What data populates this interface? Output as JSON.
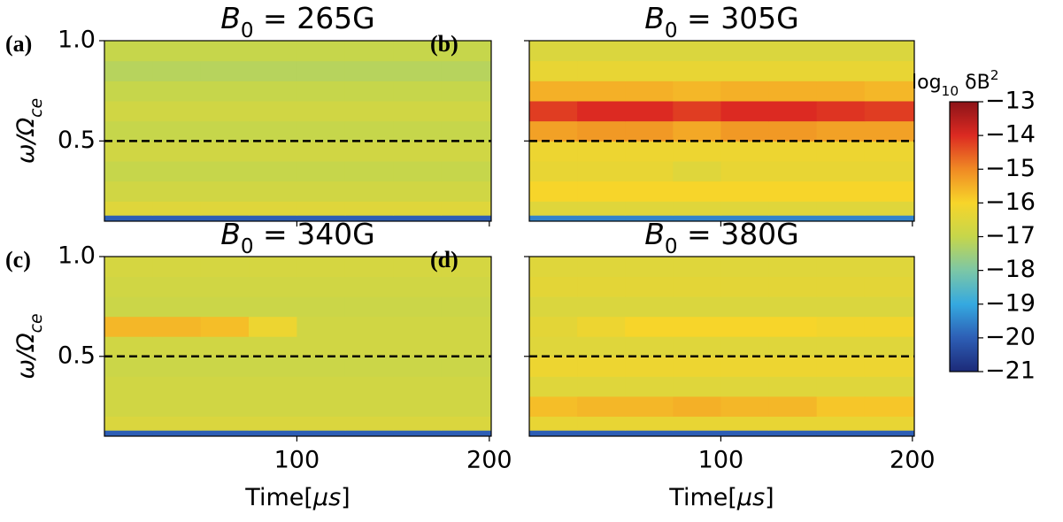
{
  "chart_data": [
    {
      "type": "heatmap",
      "panel_label": "(a)",
      "title_parts": [
        "B",
        "0",
        " = 265G"
      ],
      "ylabel_parts": [
        "ω/Ω",
        "ce"
      ],
      "x_edges": [
        0,
        25,
        50,
        75,
        100,
        125,
        150,
        175,
        200
      ],
      "y_edges": [
        0.1,
        0.13,
        0.2,
        0.3,
        0.4,
        0.5,
        0.6,
        0.7,
        0.8,
        0.9,
        1.0
      ],
      "z": [
        [
          -20,
          -20,
          -20,
          -20,
          -20,
          -20,
          -20,
          -20
        ],
        [
          -16.5,
          -16.5,
          -16.5,
          -16.5,
          -16.5,
          -16.5,
          -16.5,
          -16.5
        ],
        [
          -16.8,
          -16.8,
          -16.8,
          -16.8,
          -16.8,
          -16.8,
          -16.8,
          -16.8
        ],
        [
          -17,
          -17,
          -17,
          -17,
          -17,
          -17,
          -17,
          -17
        ],
        [
          -16.8,
          -16.8,
          -16.8,
          -16.8,
          -16.8,
          -16.8,
          -16.8,
          -16.8
        ],
        [
          -17,
          -17,
          -17,
          -17,
          -17,
          -17,
          -17,
          -17
        ],
        [
          -16.8,
          -16.8,
          -16.8,
          -16.8,
          -16.8,
          -16.8,
          -16.8,
          -16.8
        ],
        [
          -17,
          -17,
          -17,
          -17,
          -17,
          -17,
          -17,
          -17
        ],
        [
          -17.2,
          -17.2,
          -17.2,
          -17.2,
          -17.2,
          -17.2,
          -17.2,
          -17.2
        ],
        [
          -17,
          -17,
          -17,
          -17,
          -17,
          -17,
          -17,
          -17
        ]
      ],
      "xlim": [
        0,
        201
      ],
      "ylim": [
        0.1,
        1.0
      ],
      "xticks": [
        100,
        200
      ],
      "yticks": [
        0.5,
        {
          "value": 1.0,
          "label": "1.0"
        }
      ],
      "hline": 0.5,
      "show_xticklabels": false,
      "show_yticklabels": true
    },
    {
      "type": "heatmap",
      "panel_label": "(b)",
      "title_parts": [
        "B",
        "0",
        " = 305G"
      ],
      "x_edges": [
        0,
        25,
        50,
        75,
        100,
        125,
        150,
        175,
        200
      ],
      "y_edges": [
        0.1,
        0.13,
        0.2,
        0.3,
        0.4,
        0.5,
        0.6,
        0.7,
        0.8,
        0.9,
        1.0
      ],
      "z": [
        [
          -19.5,
          -19.5,
          -19.5,
          -19.5,
          -19.5,
          -19.5,
          -19.5,
          -19.5
        ],
        [
          -16.5,
          -16.5,
          -16.5,
          -16.5,
          -16.5,
          -16.5,
          -16.5,
          -16.5
        ],
        [
          -16,
          -16,
          -16,
          -16,
          -16,
          -16,
          -16,
          -16
        ],
        [
          -16.3,
          -16.3,
          -16.3,
          -16.5,
          -16.3,
          -16.3,
          -16.3,
          -16.3
        ],
        [
          -16.2,
          -16.2,
          -16.2,
          -16.2,
          -16.2,
          -16.2,
          -16.2,
          -16.2
        ],
        [
          -15.3,
          -15.2,
          -15.2,
          -15.4,
          -15.2,
          -15.2,
          -15.3,
          -15.3
        ],
        [
          -14.2,
          -14,
          -14,
          -14.2,
          -14,
          -14,
          -14.1,
          -14.2
        ],
        [
          -15.5,
          -15.5,
          -15.5,
          -15.6,
          -15.5,
          -15.5,
          -15.5,
          -15.6
        ],
        [
          -16.3,
          -16.3,
          -16.3,
          -16.3,
          -16.3,
          -16.3,
          -16.3,
          -16.3
        ],
        [
          -16.6,
          -16.6,
          -16.6,
          -16.6,
          -16.6,
          -16.6,
          -16.6,
          -16.6
        ]
      ],
      "xlim": [
        0,
        201
      ],
      "ylim": [
        0.1,
        1.0
      ],
      "xticks": [
        100,
        200
      ],
      "yticks": [
        0.5,
        {
          "value": 1.0,
          "label": "1.0"
        }
      ],
      "hline": 0.5,
      "show_xticklabels": false,
      "show_yticklabels": false
    },
    {
      "type": "heatmap",
      "panel_label": "(c)",
      "title_parts": [
        "B",
        "0",
        " = 340G"
      ],
      "ylabel_parts": [
        "ω/Ω",
        "ce"
      ],
      "xlabel_parts": [
        "Time[",
        "μs",
        "]"
      ],
      "x_edges": [
        0,
        25,
        50,
        75,
        100,
        125,
        150,
        175,
        200
      ],
      "y_edges": [
        0.1,
        0.13,
        0.2,
        0.3,
        0.4,
        0.5,
        0.6,
        0.7,
        0.8,
        0.9,
        1.0
      ],
      "z": [
        [
          -20,
          -20,
          -20,
          -20,
          -20,
          -20,
          -20,
          -20
        ],
        [
          -16.6,
          -16.6,
          -16.6,
          -16.6,
          -16.6,
          -16.6,
          -16.6,
          -16.6
        ],
        [
          -16.8,
          -16.8,
          -16.8,
          -16.8,
          -16.8,
          -16.8,
          -16.8,
          -16.8
        ],
        [
          -16.8,
          -16.8,
          -16.8,
          -16.8,
          -16.8,
          -16.8,
          -16.8,
          -16.8
        ],
        [
          -16.9,
          -16.9,
          -16.9,
          -16.9,
          -16.9,
          -16.9,
          -16.9,
          -16.9
        ],
        [
          -16.8,
          -16.8,
          -16.8,
          -16.8,
          -16.8,
          -16.8,
          -16.8,
          -16.8
        ],
        [
          -15.6,
          -15.6,
          -15.7,
          -16.2,
          -16.8,
          -16.8,
          -16.8,
          -16.8
        ],
        [
          -16.9,
          -16.9,
          -16.9,
          -16.9,
          -16.9,
          -16.9,
          -16.9,
          -16.9
        ],
        [
          -16.8,
          -16.8,
          -16.8,
          -16.8,
          -16.8,
          -16.8,
          -16.8,
          -16.8
        ],
        [
          -16.7,
          -16.7,
          -16.7,
          -16.7,
          -16.7,
          -16.7,
          -16.7,
          -16.7
        ]
      ],
      "xlim": [
        0,
        201
      ],
      "ylim": [
        0.1,
        1.0
      ],
      "xticks": [
        100,
        200
      ],
      "yticks": [
        0.5,
        {
          "value": 1.0,
          "label": "1.0"
        }
      ],
      "hline": 0.5,
      "show_xticklabels": true,
      "show_yticklabels": true
    },
    {
      "type": "heatmap",
      "panel_label": "(d)",
      "title_parts": [
        "B",
        "0",
        " = 380G"
      ],
      "xlabel_parts": [
        "Time[",
        "μs",
        "]"
      ],
      "x_edges": [
        0,
        25,
        50,
        75,
        100,
        125,
        150,
        175,
        200
      ],
      "y_edges": [
        0.1,
        0.13,
        0.2,
        0.3,
        0.4,
        0.5,
        0.6,
        0.7,
        0.8,
        0.9,
        1.0
      ],
      "z": [
        [
          -20,
          -20,
          -20,
          -20,
          -20,
          -20,
          -20,
          -20
        ],
        [
          -16.3,
          -16.3,
          -16.3,
          -16.3,
          -16.3,
          -16.3,
          -16.3,
          -16.3
        ],
        [
          -15.7,
          -15.6,
          -15.6,
          -15.5,
          -15.6,
          -15.6,
          -15.8,
          -15.8
        ],
        [
          -16.5,
          -16.5,
          -16.5,
          -16.5,
          -16.5,
          -16.5,
          -16.5,
          -16.5
        ],
        [
          -16.2,
          -16.2,
          -16.2,
          -16.2,
          -16.2,
          -16.2,
          -16.2,
          -16.2
        ],
        [
          -16.5,
          -16.5,
          -16.5,
          -16.5,
          -16.5,
          -16.5,
          -16.5,
          -16.5
        ],
        [
          -16.4,
          -16.2,
          -16,
          -16,
          -16,
          -16,
          -16.1,
          -16.1
        ],
        [
          -16.6,
          -16.6,
          -16.6,
          -16.6,
          -16.6,
          -16.6,
          -16.6,
          -16.6
        ],
        [
          -16.4,
          -16.4,
          -16.4,
          -16.4,
          -16.4,
          -16.4,
          -16.4,
          -16.4
        ],
        [
          -16.5,
          -16.5,
          -16.5,
          -16.5,
          -16.5,
          -16.5,
          -16.5,
          -16.5
        ]
      ],
      "xlim": [
        0,
        201
      ],
      "ylim": [
        0.1,
        1.0
      ],
      "xticks": [
        100,
        200
      ],
      "yticks": [
        0.5,
        {
          "value": 1.0,
          "label": "1.0"
        }
      ],
      "hline": 0.5,
      "show_xticklabels": true,
      "show_yticklabels": false
    }
  ],
  "colorbar": {
    "label_parts": [
      "log",
      "10",
      " δB",
      "2"
    ],
    "clim": [
      -21,
      -13
    ],
    "colors": [
      "#1c2a78",
      "#2d5eb5",
      "#35a9e0",
      "#7cc7a6",
      "#c6d64b",
      "#f7d52a",
      "#f08a24",
      "#dc2a22",
      "#8c1318"
    ],
    "ticks": [
      {
        "value": -21,
        "label": "−21"
      },
      {
        "value": -20,
        "label": "−20"
      },
      {
        "value": -19,
        "label": "−19"
      },
      {
        "value": -18,
        "label": "−18"
      },
      {
        "value": -17,
        "label": "−17"
      },
      {
        "value": -16,
        "label": "−16"
      },
      {
        "value": -15,
        "label": "−15"
      },
      {
        "value": -14,
        "label": "−14"
      },
      {
        "value": -13,
        "label": "−13"
      }
    ]
  }
}
